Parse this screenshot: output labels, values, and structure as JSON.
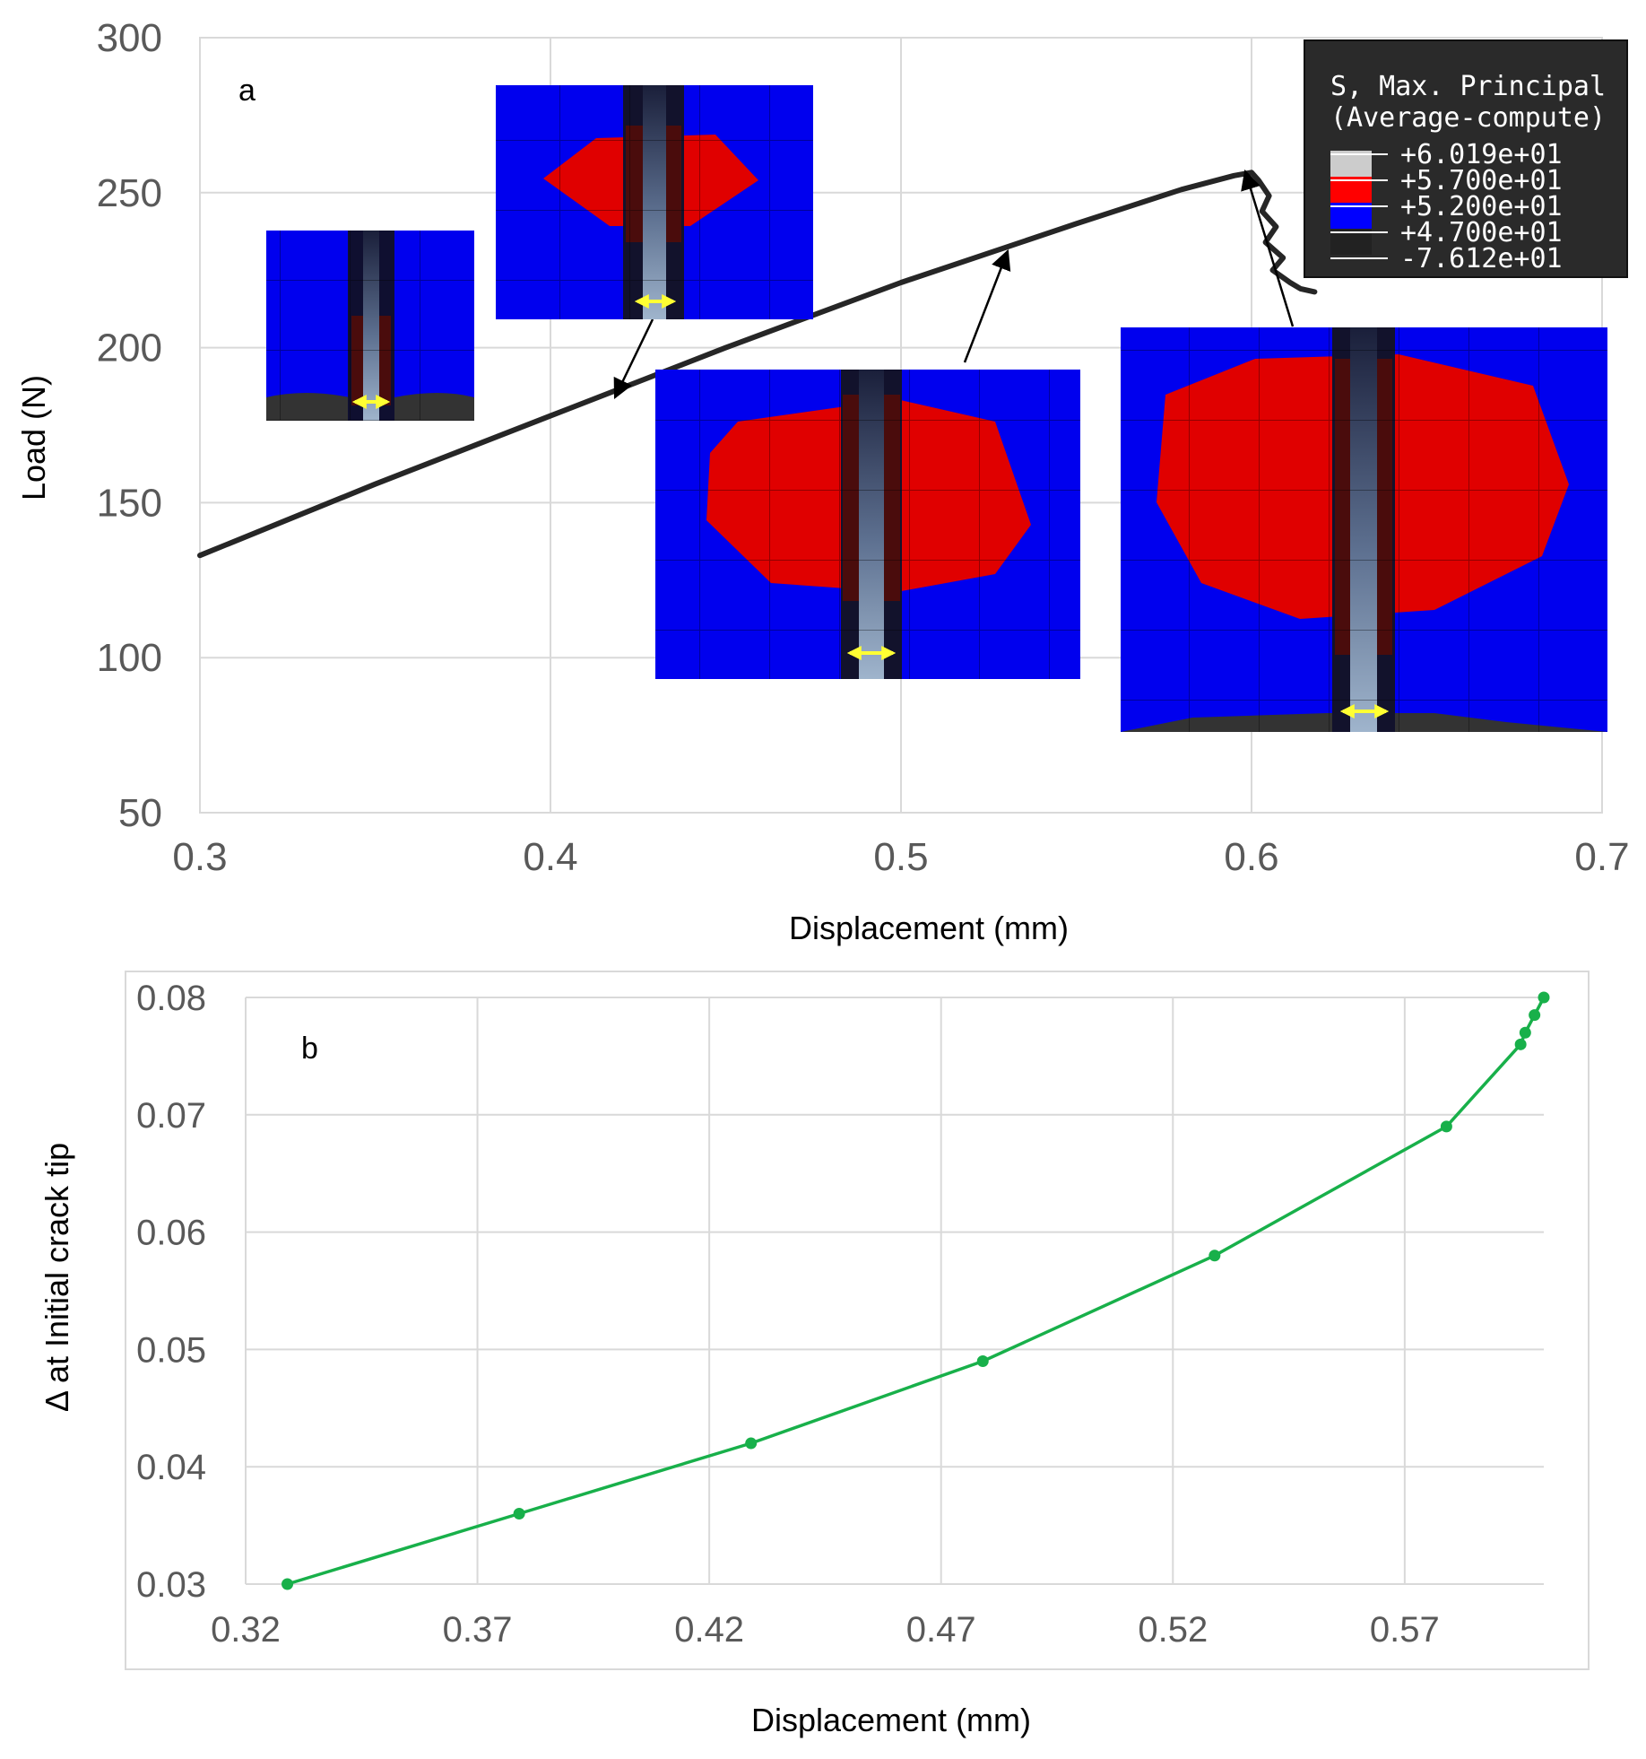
{
  "chart_data": [
    {
      "type": "line",
      "panel_label": "a",
      "xlabel": "Displacement (mm)",
      "ylabel": "Load (N)",
      "xlim": [
        0.3,
        0.7
      ],
      "ylim": [
        50,
        300
      ],
      "xticks": [
        "0.3",
        "0.4",
        "0.5",
        "0.6",
        "0.7"
      ],
      "yticks": [
        "50",
        "100",
        "150",
        "200",
        "250",
        "300"
      ],
      "grid": true,
      "series": [
        {
          "name": "Load",
          "color": "#262626",
          "x": [
            0.3,
            0.35,
            0.4,
            0.45,
            0.5,
            0.55,
            0.58,
            0.595,
            0.6,
            0.602,
            0.605,
            0.603,
            0.607,
            0.604,
            0.609,
            0.606,
            0.611,
            0.614,
            0.618
          ],
          "y": [
            133,
            156,
            178,
            200,
            221,
            240,
            251,
            255.5,
            256.5,
            254,
            249,
            244,
            239,
            234,
            229,
            225,
            221,
            219,
            218
          ]
        }
      ],
      "insets": [
        {
          "name": "inset-1",
          "x": 0.42,
          "y": 177
        },
        {
          "name": "inset-2",
          "x": 0.42,
          "y": 177
        },
        {
          "name": "inset-3",
          "x": 0.535,
          "y": 236
        },
        {
          "name": "inset-4",
          "x": 0.6,
          "y": 256
        }
      ],
      "legend": {
        "title": [
          "S, Max. Principal",
          "(Average-compute)"
        ],
        "entries": [
          {
            "value": "+6.019e+01",
            "color": "#cccccc"
          },
          {
            "value": "+5.700e+01",
            "color": "#ff0000"
          },
          {
            "value": "+5.200e+01",
            "color": "#0000ff"
          },
          {
            "value": "+4.700e+01",
            "color": "#222222"
          },
          {
            "value": "-7.612e+01",
            "color": "#222222"
          }
        ],
        "background": "#2a2a2a",
        "placement": "top-right"
      }
    },
    {
      "type": "line",
      "panel_label": "b",
      "xlabel": "Displacement (mm)",
      "ylabel": "Δ at Initial crack tip",
      "xlim": [
        0.32,
        0.6
      ],
      "ylim": [
        0.03,
        0.08
      ],
      "xticks": [
        "0.32",
        "0.37",
        "0.42",
        "0.47",
        "0.52",
        "0.57"
      ],
      "yticks": [
        "0.03",
        "0.04",
        "0.05",
        "0.06",
        "0.07",
        "0.08"
      ],
      "grid": true,
      "series": [
        {
          "name": "Delta",
          "color": "#18b04a",
          "x": [
            0.329,
            0.379,
            0.429,
            0.479,
            0.529,
            0.579,
            0.595,
            0.596,
            0.598,
            0.6
          ],
          "y": [
            0.03,
            0.036,
            0.042,
            0.049,
            0.058,
            0.069,
            0.076,
            0.077,
            0.0785,
            0.08
          ]
        }
      ]
    }
  ]
}
